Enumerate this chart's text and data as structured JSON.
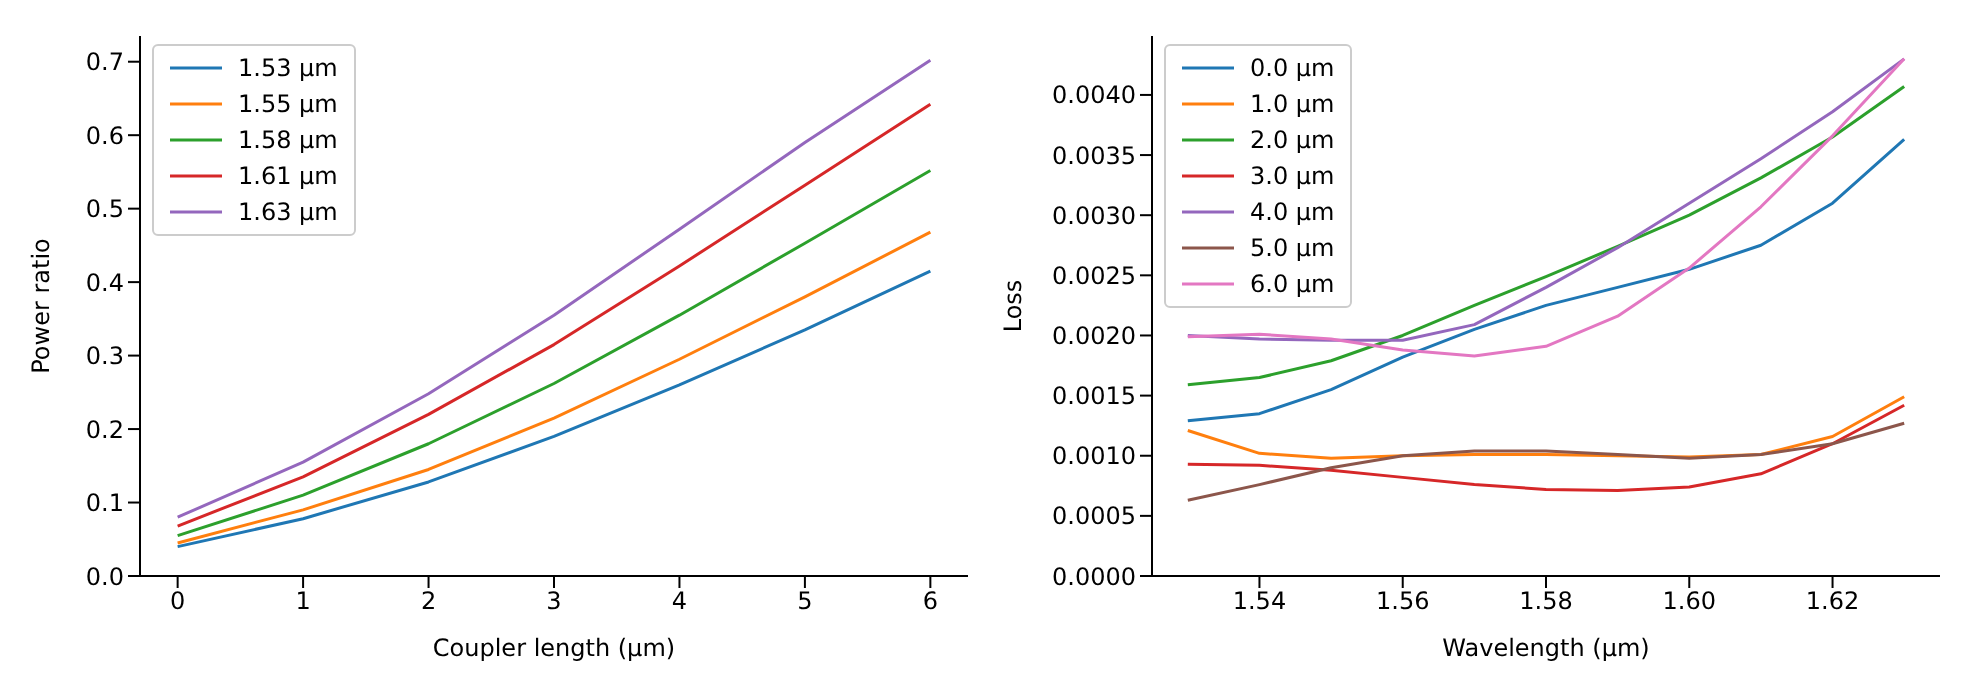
{
  "chart_data": [
    {
      "type": "line",
      "xlabel": "Coupler length (µm)",
      "ylabel": "Power ratio",
      "x": [
        0,
        1,
        2,
        3,
        4,
        5,
        6
      ],
      "xlim": [
        -0.3,
        6.3
      ],
      "xticks": [
        0,
        1,
        2,
        3,
        4,
        5,
        6
      ],
      "ylim": [
        0,
        0.735
      ],
      "yticks": [
        {
          "value": 0,
          "label": "0.0"
        },
        0.1,
        0.2,
        0.3,
        0.4,
        0.5,
        0.6,
        0.7
      ],
      "grid": false,
      "legend": "top left",
      "marker": "none",
      "line_style": "solid",
      "series": [
        {
          "name": "1.53 µm",
          "color": "#1f77b4",
          "values": [
            0.04,
            0.078,
            0.128,
            0.19,
            0.26,
            0.335,
            0.415
          ]
        },
        {
          "name": "1.55 µm",
          "color": "#ff7f0e",
          "values": [
            0.045,
            0.09,
            0.145,
            0.215,
            0.295,
            0.38,
            0.468
          ]
        },
        {
          "name": "1.58 µm",
          "color": "#2ca02c",
          "values": [
            0.055,
            0.11,
            0.18,
            0.262,
            0.355,
            0.453,
            0.552
          ]
        },
        {
          "name": "1.61 µm",
          "color": "#d62728",
          "values": [
            0.068,
            0.135,
            0.22,
            0.315,
            0.422,
            0.532,
            0.642
          ]
        },
        {
          "name": "1.63 µm",
          "color": "#9467bd",
          "values": [
            0.08,
            0.155,
            0.248,
            0.355,
            0.472,
            0.59,
            0.702
          ]
        }
      ]
    },
    {
      "type": "line",
      "xlabel": "Wavelength (µm)",
      "ylabel": "Loss",
      "x": [
        1.53,
        1.54,
        1.55,
        1.56,
        1.57,
        1.58,
        1.59,
        1.6,
        1.61,
        1.62,
        1.63
      ],
      "xlim": [
        1.525,
        1.635
      ],
      "xticks": [
        1.54,
        1.56,
        1.58,
        {
          "value": 1.6,
          "label": "1.60"
        },
        1.62
      ],
      "ylim": [
        0,
        0.00449
      ],
      "yticks": [
        {
          "value": 0,
          "label": "0.0000"
        },
        {
          "value": 0.0005,
          "label": "0.0005"
        },
        {
          "value": 0.001,
          "label": "0.0010"
        },
        {
          "value": 0.0015,
          "label": "0.0015"
        },
        {
          "value": 0.002,
          "label": "0.0020"
        },
        {
          "value": 0.0025,
          "label": "0.0025"
        },
        {
          "value": 0.003,
          "label": "0.0030"
        },
        {
          "value": 0.0035,
          "label": "0.0035"
        },
        {
          "value": 0.004,
          "label": "0.0040"
        }
      ],
      "grid": false,
      "legend": "top left",
      "marker": "none",
      "line_style": "solid",
      "series": [
        {
          "name": "0.0 µm",
          "color": "#1f77b4",
          "values": [
            0.00129,
            0.00135,
            0.00155,
            0.00182,
            0.00205,
            0.00225,
            0.0024,
            0.00255,
            0.00275,
            0.0031,
            0.00363
          ]
        },
        {
          "name": "1.0 µm",
          "color": "#ff7f0e",
          "values": [
            0.00121,
            0.00102,
            0.00098,
            0.001,
            0.00101,
            0.00101,
            0.001,
            0.00099,
            0.00101,
            0.00116,
            0.00149
          ]
        },
        {
          "name": "2.0 µm",
          "color": "#2ca02c",
          "values": [
            0.00159,
            0.00165,
            0.00179,
            0.002,
            0.00225,
            0.00249,
            0.00274,
            0.003,
            0.00331,
            0.00365,
            0.00407
          ]
        },
        {
          "name": "3.0 µm",
          "color": "#d62728",
          "values": [
            0.00093,
            0.00092,
            0.00088,
            0.00082,
            0.00076,
            0.00072,
            0.00071,
            0.00074,
            0.00085,
            0.0011,
            0.00142
          ]
        },
        {
          "name": "4.0 µm",
          "color": "#9467bd",
          "values": [
            0.002,
            0.00197,
            0.00196,
            0.00196,
            0.00209,
            0.0024,
            0.00273,
            0.0031,
            0.00347,
            0.00386,
            0.0043
          ]
        },
        {
          "name": "5.0 µm",
          "color": "#8c564b",
          "values": [
            0.00063,
            0.00076,
            0.0009,
            0.001,
            0.00104,
            0.00104,
            0.00101,
            0.00098,
            0.00101,
            0.0011,
            0.00127
          ]
        },
        {
          "name": "6.0 µm",
          "color": "#e377c2",
          "values": [
            0.00199,
            0.00201,
            0.00197,
            0.00188,
            0.00183,
            0.00191,
            0.00216,
            0.00256,
            0.00307,
            0.00366,
            0.0043
          ]
        }
      ]
    }
  ]
}
